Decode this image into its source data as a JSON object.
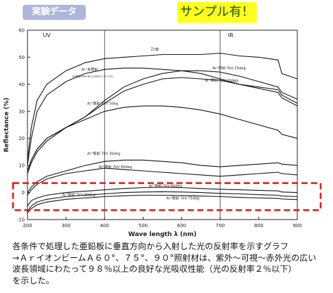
{
  "badge": "実験データ",
  "sample_label": "サンプル有！",
  "caption": [
    "各条件で処理した亜鉛板に垂直方向から入射した光の反射率を示すグラフ",
    "→ＡｒイオンビームＡ６０°、７５°、９０°照射材は、紫外～可視～赤外光の広い",
    "波長領域にわたって９８％以上の良好な光吸収性能（光の反射率２％以下）",
    "を示した。"
  ],
  "chart_data": {
    "type": "line",
    "xlabel": "Wave length λ (nm)",
    "ylabel": "Reflectance (%)",
    "xlim": [
      200,
      900
    ],
    "ylim": [
      -10,
      60
    ],
    "x_ticks": [
      "200",
      "300",
      "400",
      "500",
      "600",
      "700",
      "800",
      "900"
    ],
    "y_ticks": [
      "-10",
      "0",
      "10",
      "20",
      "30",
      "40",
      "50",
      "60"
    ],
    "grid": false,
    "region_labels": [
      "UV",
      "IR"
    ],
    "region_dividers_nm": [
      400,
      700
    ],
    "highlight_range_y": [
      -6.5,
      3.5
    ],
    "series": [
      {
        "name": "Zn板",
        "x": [
          200,
          210,
          225,
          250,
          300,
          350,
          400,
          450,
          500,
          550,
          600,
          650,
          700,
          750,
          800,
          850,
          860,
          900
        ],
        "y": [
          12,
          24,
          34,
          40,
          45,
          48,
          49.5,
          50,
          50.5,
          51,
          51,
          51,
          51.5,
          50.5,
          50,
          49,
          44,
          42
        ]
      },
      {
        "name": "Ar⁺未照射",
        "x": [
          200,
          210,
          225,
          250,
          300,
          350,
          400,
          450,
          500,
          550,
          600,
          650,
          700,
          750,
          800,
          850,
          860,
          900
        ],
        "y": [
          10,
          20,
          30,
          36,
          41,
          44,
          45.5,
          46,
          46,
          45.5,
          45,
          44,
          42,
          40,
          39,
          38,
          36,
          33
        ]
      },
      {
        "name": "Ar⁺照射 7kV 15deg",
        "x": [
          200,
          210,
          225,
          250,
          300,
          350,
          400,
          450,
          500,
          550,
          600,
          650,
          700,
          750,
          800,
          850,
          860,
          900
        ],
        "y": [
          8,
          12,
          16,
          20,
          24,
          28,
          34,
          39,
          42,
          44,
          45,
          45,
          44.5,
          43,
          41,
          39,
          37,
          34.5
        ]
      },
      {
        "name": "Ar⁺照射 7kV 10deg",
        "x": [
          200,
          210,
          225,
          250,
          300,
          350,
          400,
          450,
          500,
          550,
          600,
          650,
          700,
          750,
          800,
          850,
          860,
          900
        ],
        "y": [
          8,
          12,
          16,
          20,
          24,
          28,
          33,
          37.5,
          40,
          42,
          42.5,
          42,
          41.5,
          40,
          38.5,
          37,
          35,
          32
        ]
      },
      {
        "name": "Ar⁺照射 7kV 5deg",
        "x": [
          200,
          210,
          225,
          250,
          300,
          350,
          400,
          450,
          500,
          550,
          600,
          650,
          700,
          750,
          800,
          850,
          860,
          900
        ],
        "y": [
          7,
          11,
          15,
          19,
          24,
          27,
          30,
          31.5,
          32,
          32,
          31.5,
          30.5,
          29,
          27,
          25,
          23,
          21.5,
          20
        ]
      },
      {
        "name": "Ar⁺照射 7kV 30deg",
        "x": [
          200,
          210,
          225,
          250,
          300,
          350,
          400,
          450,
          500,
          550,
          600,
          650,
          700,
          750,
          800,
          850,
          860,
          900
        ],
        "y": [
          0,
          2,
          4,
          6,
          8,
          10,
          11.5,
          12,
          12,
          11.5,
          11,
          10,
          9.5,
          10,
          10.5,
          11,
          10.5,
          10
        ]
      },
      {
        "name": "Ar⁺照射 7kV 45deg",
        "x": [
          200,
          210,
          225,
          250,
          300,
          350,
          400,
          450,
          500,
          550,
          600,
          650,
          700,
          750,
          800,
          850,
          860,
          900
        ],
        "y": [
          -1,
          1,
          3,
          5,
          7,
          8,
          9,
          8.5,
          8,
          7.5,
          7,
          6.5,
          6,
          6.5,
          7,
          7.5,
          7,
          6.5
        ]
      },
      {
        "name": "Ar⁺照射 7kV 60deg",
        "x": [
          200,
          210,
          225,
          250,
          300,
          350,
          400,
          450,
          500,
          550,
          600,
          650,
          700,
          750,
          800,
          850,
          860,
          900
        ],
        "y": [
          -5,
          -3,
          -2,
          -1,
          0,
          0.5,
          1,
          1.5,
          1.8,
          2,
          1.8,
          1.5,
          1.2,
          1,
          0.8,
          0.6,
          0.2,
          0
        ]
      },
      {
        "name": "Ar⁺照射 7kV 90deg",
        "x": [
          200,
          210,
          225,
          250,
          300,
          350,
          400,
          450,
          500,
          550,
          600,
          650,
          700,
          750,
          800,
          850,
          860,
          900
        ],
        "y": [
          -7,
          -5,
          -3.5,
          -2.5,
          -1.5,
          -1,
          -0.5,
          0,
          0.2,
          0.3,
          0.2,
          0,
          -0.3,
          -0.5,
          -0.8,
          -1,
          -1.3,
          -1.5
        ]
      },
      {
        "name": "Ar⁺照射 7kV 75deg",
        "x": [
          200,
          210,
          225,
          250,
          300,
          350,
          400,
          450,
          500,
          550,
          600,
          650,
          700,
          750,
          800,
          850,
          860,
          900
        ],
        "y": [
          -7.5,
          -6,
          -4.5,
          -3.5,
          -2.5,
          -2,
          -1.5,
          -1.2,
          -1,
          -1,
          -1.1,
          -1.3,
          -1.5,
          -1.8,
          -2,
          -2.2,
          -2.4,
          -2.6
        ]
      }
    ],
    "curve_labels": [
      "Zn板",
      "Ar⁺未照射",
      "(2h照射2MW·IEC(1分Mエッチング))",
      "Ar⁺照射 7kV 15deg",
      "Ar⁺照射 7kV 10deg",
      "Ar⁺照射 7kV 5deg",
      "Ar⁺照射 7kV 30deg",
      "Ar⁺照射 7kV 45deg",
      "Ar⁺照射 7kV 60deg",
      "Ar⁺照射 7kV 90deg",
      "Ar⁺照射 7kV 75deg"
    ]
  }
}
